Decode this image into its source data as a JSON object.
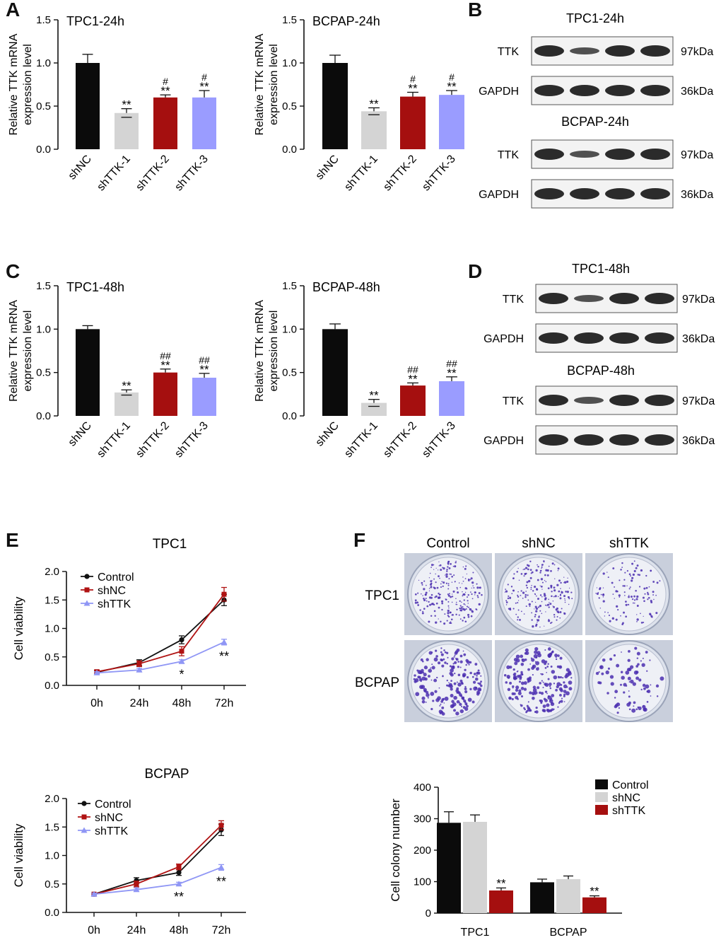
{
  "panels": {
    "A": "A",
    "B": "B",
    "C": "C",
    "D": "D",
    "E": "E",
    "F": "F"
  },
  "colors": {
    "black": "#0b0b0b",
    "grey": "#d4d4d4",
    "red": "#a50f0f",
    "lavender": "#9a9cff",
    "line_black": "#111111",
    "line_red": "#b01313",
    "line_blue": "#8f96f5"
  },
  "chart_data": [
    {
      "id": "a1",
      "type": "bar",
      "title": "TPC1-24h",
      "ylabel": "Relative TTK mRNA expression level",
      "ylabel_lines": [
        "Relative TTK mRNA",
        "expression level"
      ],
      "categories": [
        "shNC",
        "shTTK-1",
        "shTTK-2",
        "shTTK-3"
      ],
      "values": [
        1.0,
        0.42,
        0.6,
        0.6
      ],
      "errors": [
        0.1,
        0.05,
        0.03,
        0.08
      ],
      "stars": [
        "",
        "**",
        "**",
        "**"
      ],
      "hashes": [
        "",
        "",
        "#",
        "#"
      ],
      "ylim": [
        0,
        1.5
      ],
      "ticks": [
        "0.0",
        "0.5",
        "1.0",
        "1.5"
      ],
      "tick_values": [
        0,
        0.5,
        1.0,
        1.5
      ]
    },
    {
      "id": "a2",
      "type": "bar",
      "title": "BCPAP-24h",
      "ylabel": "Relative TTK mRNA expression level",
      "ylabel_lines": [
        "Relative TTK mRNA",
        "expression level"
      ],
      "categories": [
        "shNC",
        "shTTK-1",
        "shTTK-2",
        "shTTK-3"
      ],
      "values": [
        1.0,
        0.44,
        0.61,
        0.63
      ],
      "errors": [
        0.09,
        0.04,
        0.05,
        0.05
      ],
      "stars": [
        "",
        "**",
        "**",
        "**"
      ],
      "hashes": [
        "",
        "",
        "#",
        "#"
      ],
      "ylim": [
        0,
        1.5
      ],
      "ticks": [
        "0.0",
        "0.5",
        "1.0",
        "1.5"
      ],
      "tick_values": [
        0,
        0.5,
        1.0,
        1.5
      ]
    },
    {
      "id": "c1",
      "type": "bar",
      "title": "TPC1-48h",
      "ylabel": "Relative TTK mRNA expression level",
      "ylabel_lines": [
        "Relative TTK mRNA",
        "expression level"
      ],
      "categories": [
        "shNC",
        "shTTK-1",
        "shTTK-2",
        "shTTK-3"
      ],
      "values": [
        1.0,
        0.27,
        0.5,
        0.44
      ],
      "errors": [
        0.04,
        0.03,
        0.04,
        0.05
      ],
      "stars": [
        "",
        "**",
        "**",
        "**"
      ],
      "hashes": [
        "",
        "",
        "##",
        "##"
      ],
      "ylim": [
        0,
        1.5
      ],
      "ticks": [
        "0.0",
        "0.5",
        "1.0",
        "1.5"
      ],
      "tick_values": [
        0,
        0.5,
        1.0,
        1.5
      ]
    },
    {
      "id": "c2",
      "type": "bar",
      "title": "BCPAP-48h",
      "ylabel": "Relative TTK mRNA expression level",
      "ylabel_lines": [
        "Relative TTK mRNA",
        "expression level"
      ],
      "categories": [
        "shNC",
        "shTTK-1",
        "shTTK-2",
        "shTTK-3"
      ],
      "values": [
        1.0,
        0.15,
        0.35,
        0.4
      ],
      "errors": [
        0.06,
        0.04,
        0.03,
        0.05
      ],
      "stars": [
        "",
        "**",
        "**",
        "**"
      ],
      "hashes": [
        "",
        "",
        "##",
        "##"
      ],
      "ylim": [
        0,
        1.5
      ],
      "ticks": [
        "0.0",
        "0.5",
        "1.0",
        "1.5"
      ],
      "tick_values": [
        0,
        0.5,
        1.0,
        1.5
      ]
    },
    {
      "id": "e1",
      "type": "line",
      "title": "TPC1",
      "ylabel": "Cell viability",
      "x": [
        "0h",
        "24h",
        "48h",
        "72h"
      ],
      "series": [
        {
          "name": "Control",
          "values": [
            0.23,
            0.4,
            0.8,
            1.5
          ],
          "errors": [
            0.03,
            0.05,
            0.07,
            0.1
          ],
          "marker": "circle"
        },
        {
          "name": "shNC",
          "values": [
            0.24,
            0.38,
            0.6,
            1.6
          ],
          "errors": [
            0.03,
            0.05,
            0.08,
            0.12
          ],
          "marker": "square"
        },
        {
          "name": "shTTK",
          "values": [
            0.22,
            0.27,
            0.42,
            0.76
          ],
          "errors": [
            0.02,
            0.03,
            0.03,
            0.05
          ],
          "marker": "triangle"
        }
      ],
      "annotations": [
        "",
        "",
        "*",
        "**"
      ],
      "ylim": [
        0,
        2.0
      ],
      "ticks": [
        "0.0",
        "0.5",
        "1.0",
        "1.5",
        "2.0"
      ],
      "tick_values": [
        0,
        0.5,
        1.0,
        1.5,
        2.0
      ]
    },
    {
      "id": "e2",
      "type": "line",
      "title": "BCPAP",
      "ylabel": "Cell viability",
      "x": [
        "0h",
        "24h",
        "48h",
        "72h"
      ],
      "series": [
        {
          "name": "Control",
          "values": [
            0.32,
            0.56,
            0.7,
            1.45
          ],
          "errors": [
            0.02,
            0.05,
            0.05,
            0.1
          ],
          "marker": "circle"
        },
        {
          "name": "shNC",
          "values": [
            0.32,
            0.5,
            0.8,
            1.53
          ],
          "errors": [
            0.02,
            0.05,
            0.05,
            0.08
          ],
          "marker": "square"
        },
        {
          "name": "shTTK",
          "values": [
            0.32,
            0.4,
            0.5,
            0.79
          ],
          "errors": [
            0.02,
            0.03,
            0.03,
            0.05
          ],
          "marker": "triangle"
        }
      ],
      "annotations": [
        "",
        "",
        "**",
        "**"
      ],
      "ylim": [
        0,
        2.0
      ],
      "ticks": [
        "0.0",
        "0.5",
        "1.0",
        "1.5",
        "2.0"
      ],
      "tick_values": [
        0,
        0.5,
        1.0,
        1.5,
        2.0
      ]
    },
    {
      "id": "f",
      "type": "bar",
      "ylabel": "Cell colony number",
      "categories": [
        "TPC1",
        "BCPAP"
      ],
      "series": [
        {
          "name": "Control",
          "values": [
            287,
            98
          ],
          "errors": [
            35,
            10
          ]
        },
        {
          "name": "shNC",
          "values": [
            290,
            108
          ],
          "errors": [
            22,
            10
          ]
        },
        {
          "name": "shTTK",
          "values": [
            72,
            50
          ],
          "errors": [
            8,
            5
          ]
        }
      ],
      "stars": [
        [
          "",
          "",
          "**"
        ],
        [
          "",
          "",
          "**"
        ]
      ],
      "ylim": [
        0,
        400
      ],
      "ticks": [
        "0",
        "100",
        "200",
        "300",
        "400"
      ],
      "tick_values": [
        0,
        100,
        200,
        300,
        400
      ]
    }
  ],
  "westerns": {
    "B": {
      "blocks": [
        {
          "title": "TPC1-24h",
          "rows": [
            {
              "label": "TTK",
              "kda": "97kDa"
            },
            {
              "label": "GAPDH",
              "kda": "36kDa"
            }
          ]
        },
        {
          "title": "BCPAP-24h",
          "rows": [
            {
              "label": "TTK",
              "kda": "97kDa"
            },
            {
              "label": "GAPDH",
              "kda": "36kDa"
            }
          ]
        }
      ]
    },
    "D": {
      "blocks": [
        {
          "title": "TPC1-48h",
          "rows": [
            {
              "label": "TTK",
              "kda": "97kDa"
            },
            {
              "label": "GAPDH",
              "kda": "36kDa"
            }
          ]
        },
        {
          "title": "BCPAP-48h",
          "rows": [
            {
              "label": "TTK",
              "kda": "97kDa"
            },
            {
              "label": "GAPDH",
              "kda": "36kDa"
            }
          ]
        }
      ]
    }
  },
  "colony": {
    "columns": [
      "Control",
      "shNC",
      "shTTK"
    ],
    "rows": [
      "TPC1",
      "BCPAP"
    ],
    "densities": [
      [
        1.0,
        0.9,
        0.5
      ],
      [
        0.8,
        0.85,
        0.35
      ]
    ]
  }
}
